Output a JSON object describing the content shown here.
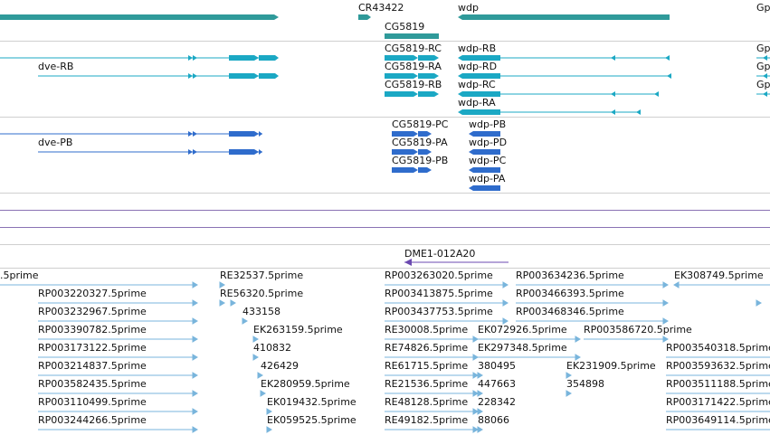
{
  "colors": {
    "gene": "#2f9a9a",
    "transcript": "#1ba8c4",
    "protein": "#2f6ccc",
    "clone": "#6b4ab0",
    "est": "#79b5dc",
    "separator": "#cfcfcf",
    "track_line": "#8a72b4"
  },
  "genes": {
    "labels": [
      "CR43422",
      "CG5819",
      "wdp",
      "Gp"
    ]
  },
  "transcripts": {
    "dve": [
      "dve-RB"
    ],
    "cg5819": [
      "CG5819-RC",
      "CG5819-RA",
      "CG5819-RB"
    ],
    "wdp": [
      "wdp-RB",
      "wdp-RD",
      "wdp-RC",
      "wdp-RA"
    ],
    "gp": [
      "Gp",
      "Gp",
      "Gp"
    ]
  },
  "proteins": {
    "dve": [
      "dve-PB"
    ],
    "cg5819": [
      "CG5819-PC",
      "CG5819-PA",
      "CG5819-PB"
    ],
    "wdp": [
      "wdp-PB",
      "wdp-PD",
      "wdp-PC",
      "wdp-PA"
    ]
  },
  "clone": {
    "label": "DME1-012A20"
  },
  "ests": {
    "col1": [
      "RP003220327.5prime",
      "RP003232967.5prime",
      "RP003390782.5prime",
      "RP003173122.5prime",
      "RP003214837.5prime",
      "RP003582435.5prime",
      "RP003110499.5prime",
      "RP003244266.5prime"
    ],
    "col2": [
      "RE32537.5prime",
      "RE56320.5prime",
      "433158",
      "EK263159.5prime",
      "410832",
      "426429",
      "EK280959.5prime",
      "EK019432.5prime",
      "EK059525.5prime"
    ],
    "col3": [
      "RP003263020.5prime",
      "RP003413875.5prime",
      "RP003437753.5prime",
      "RE30008.5prime",
      "RE74826.5prime",
      "RE61715.5prime",
      "RE21536.5prime",
      "RE48128.5prime",
      "RE49182.5prime"
    ],
    "col4": [
      "EK072926.5prime",
      "EK297348.5prime",
      "380495",
      "447663",
      "228342",
      "88066"
    ],
    "col5": [
      "RP003634236.5prime",
      "RP003466393.5prime",
      "RP003468346.5prime",
      "RP003586720.5prime"
    ],
    "col6": [
      "EK231909.5prime",
      "354898"
    ],
    "col7": [
      "EK308749.5prime",
      "RP003540318.5prime",
      "RP003593632.5prime",
      "RP003511188.5prime",
      "RP003171422.5prime",
      "RP003649114.5prime"
    ],
    "first": ".5prime"
  }
}
